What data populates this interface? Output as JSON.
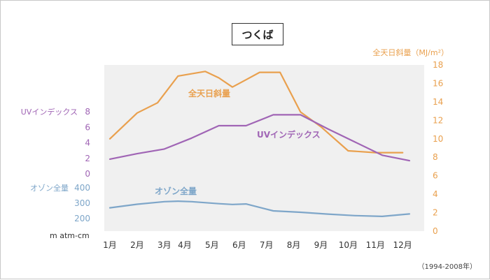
{
  "colors": {
    "solar": "#e9a04e",
    "uv": "#a065b5",
    "ozone": "#7ea6c9",
    "plot_bg": "#f0f0f0",
    "axis_text": "#333333"
  },
  "note": "（1994-2008年）",
  "chart_data": {
    "type": "line",
    "title": "つくば",
    "categories": [
      "1月",
      "2月",
      "3月",
      "4月",
      "5月",
      "6月",
      "7月",
      "8月",
      "9月",
      "10月",
      "11月",
      "12月"
    ],
    "x_positions": [
      1,
      2,
      3,
      3.75,
      4.75,
      5.75,
      6.75,
      7.75,
      8.75,
      9.75,
      10.75,
      11.75
    ],
    "grid": false,
    "series": [
      {
        "name": "全天日斜量",
        "axis": "right",
        "x": [
          1,
          2,
          2.75,
          3.5,
          4.5,
          5,
          5.5,
          6,
          6.5,
          7.25,
          8,
          8.75,
          9.75,
          10.75,
          11.75
        ],
        "values": [
          10.0,
          12.8,
          13.9,
          16.8,
          17.3,
          16.6,
          15.6,
          16.4,
          17.2,
          17.2,
          12.9,
          11.3,
          8.7,
          8.5,
          8.5
        ],
        "color": "#e9a04e"
      },
      {
        "name": "UVインデックス",
        "axis": "uv",
        "x": [
          1,
          2,
          3,
          4,
          5,
          6,
          7,
          8,
          9,
          10,
          11,
          12
        ],
        "values": [
          1.9,
          2.6,
          3.2,
          4.6,
          6.2,
          6.2,
          7.6,
          7.6,
          5.8,
          4.1,
          2.4,
          1.7
        ],
        "color": "#a065b5"
      },
      {
        "name": "オゾン全量",
        "axis": "ozone",
        "x": [
          1,
          2,
          3,
          3.5,
          4,
          5,
          5.5,
          6,
          7,
          8,
          9,
          10,
          11,
          12
        ],
        "values": [
          270,
          293,
          310,
          313,
          310,
          297,
          292,
          295,
          250,
          241,
          229,
          219,
          214,
          230
        ],
        "color": "#7ea6c9"
      }
    ],
    "right_axis": {
      "label": "全天日斜量（MJ/m²）",
      "ticks": [
        0,
        2,
        4,
        6,
        8,
        10,
        12,
        14,
        16,
        18
      ],
      "range": [
        0,
        18
      ]
    },
    "uv_axis": {
      "label": "UVインデックス",
      "ticks": [
        0,
        2,
        4,
        6,
        8
      ],
      "range": [
        0,
        8
      ]
    },
    "ozone_axis": {
      "label": "オゾン全量",
      "unit": "m atm-cm",
      "ticks": [
        200,
        300,
        400
      ],
      "tick_labels": [
        "200",
        "300",
        "400"
      ],
      "range": [
        200,
        400
      ]
    }
  }
}
